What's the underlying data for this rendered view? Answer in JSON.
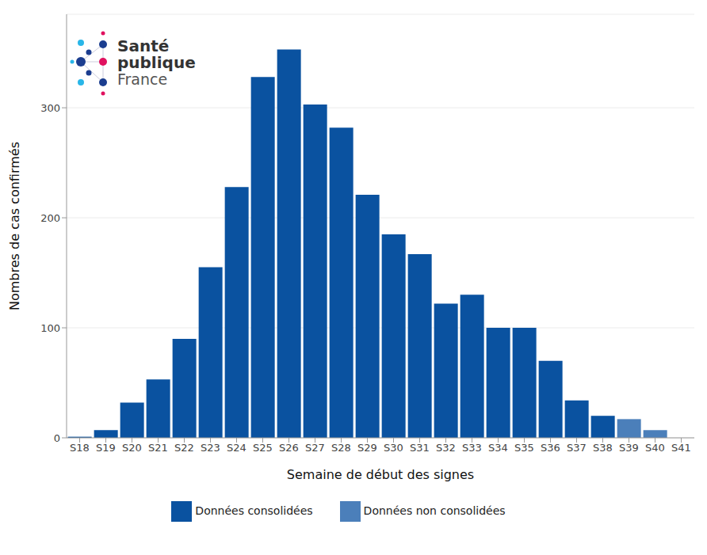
{
  "chart_data": {
    "type": "bar",
    "logo_text": [
      "Santé",
      "publique",
      "France"
    ],
    "x_label": "Semaine de début des signes",
    "y_label": "Nombres de cas confirmés",
    "categories": [
      "S18",
      "S19",
      "S20",
      "S21",
      "S22",
      "S23",
      "S24",
      "S25",
      "S26",
      "S27",
      "S28",
      "S29",
      "S30",
      "S31",
      "S32",
      "S33",
      "S34",
      "S35",
      "S36",
      "S37",
      "S38",
      "S39",
      "S40",
      "S41"
    ],
    "series": [
      {
        "name": "Données consolidées",
        "color": "#0a52a0",
        "values": [
          1,
          7,
          32,
          53,
          90,
          155,
          228,
          328,
          353,
          303,
          282,
          221,
          185,
          167,
          122,
          130,
          100,
          100,
          70,
          34,
          20,
          null,
          null,
          0
        ]
      },
      {
        "name": "Données non consolidées",
        "color": "#4b7fba",
        "values": [
          null,
          null,
          null,
          null,
          null,
          null,
          null,
          null,
          null,
          null,
          null,
          null,
          null,
          null,
          null,
          null,
          null,
          null,
          null,
          null,
          null,
          17,
          7,
          null
        ]
      }
    ],
    "stacked": true,
    "ylim": [
      0,
      385
    ],
    "yticks": [
      0,
      100,
      200,
      300
    ],
    "grid": true,
    "legend": "bottom"
  }
}
